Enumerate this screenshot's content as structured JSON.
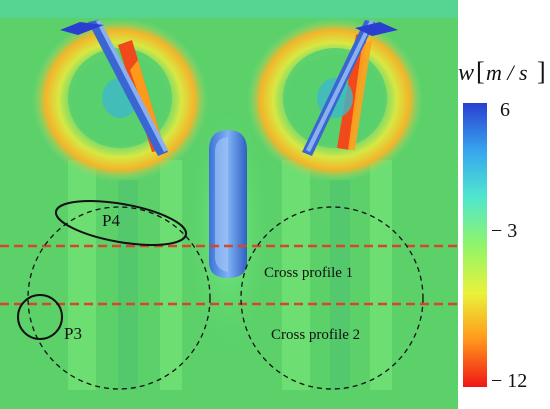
{
  "colorbar": {
    "title_var": "w",
    "title_bracket_open": "[",
    "title_unit": "m / s",
    "title_bracket_close": "]",
    "ticks": [
      "6",
      "− 3",
      "− 12"
    ],
    "colors": [
      "#2a3fd0",
      "#37a6ee",
      "#4fe6cf",
      "#8ff56a",
      "#eaf23a",
      "#ff9a1c",
      "#f01616"
    ]
  },
  "regions": {
    "p3": "P3",
    "p4": "P4",
    "cross1": "Cross profile 1",
    "cross2": "Cross profile 2"
  },
  "colors": {
    "field_green": "#5fd66a",
    "line_red": "#d4472b",
    "outline": "#111111"
  }
}
